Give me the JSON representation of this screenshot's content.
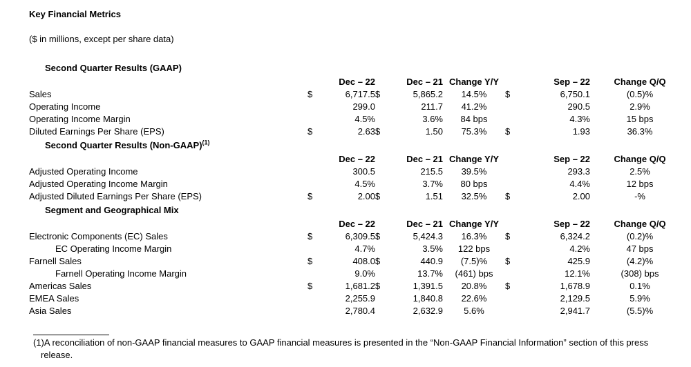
{
  "page": {
    "title": "Key Financial Metrics",
    "subtitle": "($ in millions, except per share data)"
  },
  "table": {
    "columns": [
      "Dec – 22",
      "Dec – 21",
      "Change Y/Y",
      "Sep – 22",
      "Change Q/Q"
    ],
    "sections": [
      {
        "heading": "Second Quarter Results (GAAP)",
        "footnote_ref": "",
        "rows": [
          {
            "label": "Sales",
            "indent": false,
            "d1": "$",
            "v1": "6,717.5",
            "d2": "$",
            "v2": "5,865.2",
            "change_yy": "14.5%",
            "d3": "$",
            "v3": "6,750.1",
            "change_qq": "(0.5)%"
          },
          {
            "label": "Operating Income",
            "indent": false,
            "d1": "",
            "v1": "299.0",
            "d2": "",
            "v2": "211.7",
            "change_yy": "41.2%",
            "d3": "",
            "v3": "290.5",
            "change_qq": "2.9%"
          },
          {
            "label": "Operating Income Margin",
            "indent": false,
            "d1": "",
            "v1": "4.5%",
            "d2": "",
            "v2": "3.6%",
            "change_yy": "84 bps",
            "d3": "",
            "v3": "4.3%",
            "change_qq": "15 bps"
          },
          {
            "label": "Diluted Earnings Per Share (EPS)",
            "indent": false,
            "d1": "$",
            "v1": "2.63",
            "d2": "$",
            "v2": "1.50",
            "change_yy": "75.3%",
            "d3": "$",
            "v3": "1.93",
            "change_qq": "36.3%"
          }
        ]
      },
      {
        "heading": "Second Quarter Results (Non-GAAP)",
        "footnote_ref": "(1)",
        "rows": [
          {
            "label": "Adjusted Operating Income",
            "indent": false,
            "d1": "",
            "v1": "300.5",
            "d2": "",
            "v2": "215.5",
            "change_yy": "39.5%",
            "d3": "",
            "v3": "293.3",
            "change_qq": "2.5%"
          },
          {
            "label": "Adjusted Operating Income Margin",
            "indent": false,
            "d1": "",
            "v1": "4.5%",
            "d2": "",
            "v2": "3.7%",
            "change_yy": "80 bps",
            "d3": "",
            "v3": "4.4%",
            "change_qq": "12 bps"
          },
          {
            "label": "Adjusted Diluted Earnings Per Share (EPS)",
            "indent": false,
            "d1": "$",
            "v1": "2.00",
            "d2": "$",
            "v2": "1.51",
            "change_yy": "32.5%",
            "d3": "$",
            "v3": "2.00",
            "change_qq": "-%"
          }
        ]
      },
      {
        "heading": "Segment and Geographical Mix",
        "footnote_ref": "",
        "rows": [
          {
            "label": "Electronic Components (EC) Sales",
            "indent": false,
            "d1": "$",
            "v1": "6,309.5",
            "d2": "$",
            "v2": "5,424.3",
            "change_yy": "16.3%",
            "d3": "$",
            "v3": "6,324.2",
            "change_qq": "(0.2)%"
          },
          {
            "label": "EC Operating Income Margin",
            "indent": true,
            "d1": "",
            "v1": "4.7%",
            "d2": "",
            "v2": "3.5%",
            "change_yy": "122 bps",
            "d3": "",
            "v3": "4.2%",
            "change_qq": "47 bps"
          },
          {
            "label": "Farnell Sales",
            "indent": false,
            "d1": "$",
            "v1": "408.0",
            "d2": "$",
            "v2": "440.9",
            "change_yy": "(7.5)%",
            "d3": "$",
            "v3": "425.9",
            "change_qq": "(4.2)%"
          },
          {
            "label": "Farnell Operating Income Margin",
            "indent": true,
            "d1": "",
            "v1": "9.0%",
            "d2": "",
            "v2": "13.7%",
            "change_yy": "(461) bps",
            "d3": "",
            "v3": "12.1%",
            "change_qq": "(308) bps"
          },
          {
            "label": "Americas Sales",
            "indent": false,
            "d1": "$",
            "v1": "1,681.2",
            "d2": "$",
            "v2": "1,391.5",
            "change_yy": "20.8%",
            "d3": "$",
            "v3": "1,678.9",
            "change_qq": "0.1%"
          },
          {
            "label": "EMEA Sales",
            "indent": false,
            "d1": "",
            "v1": "2,255.9",
            "d2": "",
            "v2": "1,840.8",
            "change_yy": "22.6%",
            "d3": "",
            "v3": "2,129.5",
            "change_qq": "5.9%"
          },
          {
            "label": "Asia Sales",
            "indent": false,
            "d1": "",
            "v1": "2,780.4",
            "d2": "",
            "v2": "2,632.9",
            "change_yy": "5.6%",
            "d3": "",
            "v3": "2,941.7",
            "change_qq": "(5.5)%"
          }
        ]
      }
    ]
  },
  "footnote": {
    "marker": "(1)",
    "text": "A reconciliation of non-GAAP financial measures to GAAP financial measures is presented in the “Non-GAAP Financial Information” section of this press release."
  }
}
